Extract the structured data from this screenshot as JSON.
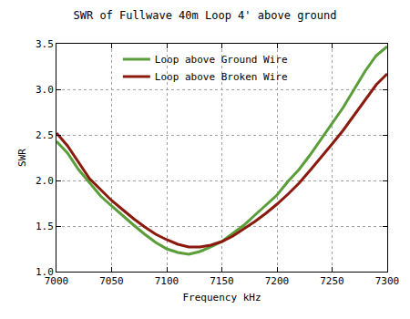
{
  "chart_data": {
    "type": "line",
    "title": "SWR of Fullwave 40m Loop 4' above ground",
    "x_label": "Frequency kHz",
    "y_label": "SWR",
    "x": [
      7000,
      7010,
      7020,
      7030,
      7040,
      7050,
      7060,
      7070,
      7080,
      7090,
      7100,
      7110,
      7120,
      7130,
      7140,
      7150,
      7160,
      7170,
      7180,
      7190,
      7200,
      7210,
      7220,
      7230,
      7240,
      7250,
      7260,
      7270,
      7280,
      7290,
      7300
    ],
    "series": [
      {
        "name": "Loop above Ground Wire",
        "color": "#5a9e3a",
        "values": [
          2.43,
          2.3,
          2.12,
          1.97,
          1.83,
          1.72,
          1.61,
          1.51,
          1.41,
          1.32,
          1.25,
          1.21,
          1.19,
          1.22,
          1.27,
          1.33,
          1.42,
          1.51,
          1.62,
          1.73,
          1.84,
          1.99,
          2.12,
          2.28,
          2.45,
          2.62,
          2.8,
          3.0,
          3.2,
          3.37,
          3.47
        ]
      },
      {
        "name": "Loop above Broken Wire",
        "color": "#8b1a0e",
        "values": [
          2.52,
          2.38,
          2.2,
          2.02,
          1.9,
          1.78,
          1.68,
          1.58,
          1.49,
          1.41,
          1.35,
          1.3,
          1.27,
          1.27,
          1.29,
          1.33,
          1.39,
          1.47,
          1.55,
          1.64,
          1.74,
          1.85,
          1.97,
          2.11,
          2.25,
          2.4,
          2.55,
          2.72,
          2.88,
          3.05,
          3.17
        ]
      }
    ],
    "xlim": [
      7000,
      7300
    ],
    "xticks": [
      7000,
      7050,
      7100,
      7150,
      7200,
      7250,
      7300
    ],
    "ylim": [
      1,
      3.5
    ],
    "yticks": [
      {
        "value": 1,
        "label": "1.0"
      },
      1.5,
      {
        "value": 2,
        "label": "2.0"
      },
      2.5,
      {
        "value": 3,
        "label": "3.0"
      },
      3.5
    ],
    "grid": true,
    "legend": "top"
  }
}
